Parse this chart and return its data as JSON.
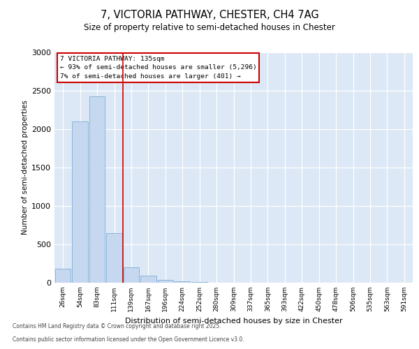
{
  "title_line1": "7, VICTORIA PATHWAY, CHESTER, CH4 7AG",
  "title_line2": "Size of property relative to semi-detached houses in Chester",
  "xlabel": "Distribution of semi-detached houses by size in Chester",
  "ylabel": "Number of semi-detached properties",
  "categories": [
    "26sqm",
    "54sqm",
    "83sqm",
    "111sqm",
    "139sqm",
    "167sqm",
    "196sqm",
    "224sqm",
    "252sqm",
    "280sqm",
    "309sqm",
    "337sqm",
    "365sqm",
    "393sqm",
    "422sqm",
    "450sqm",
    "478sqm",
    "506sqm",
    "535sqm",
    "563sqm",
    "591sqm"
  ],
  "values": [
    180,
    2100,
    2430,
    650,
    200,
    90,
    40,
    20,
    5,
    0,
    0,
    0,
    0,
    0,
    0,
    0,
    0,
    0,
    0,
    0,
    0
  ],
  "bar_color": "#c5d8f0",
  "bar_edge_color": "#7eadd4",
  "vline_x": 3.5,
  "vline_color": "#cc0000",
  "annotation_title": "7 VICTORIA PATHWAY: 135sqm",
  "annotation_line2": "← 93% of semi-detached houses are smaller (5,296)",
  "annotation_line3": "7% of semi-detached houses are larger (401) →",
  "annotation_box_edgecolor": "#cc0000",
  "ylim": [
    0,
    3000
  ],
  "yticks": [
    0,
    500,
    1000,
    1500,
    2000,
    2500,
    3000
  ],
  "plot_bg_color": "#dce8f5",
  "footer_line1": "Contains HM Land Registry data © Crown copyright and database right 2025.",
  "footer_line2": "Contains public sector information licensed under the Open Government Licence v3.0."
}
